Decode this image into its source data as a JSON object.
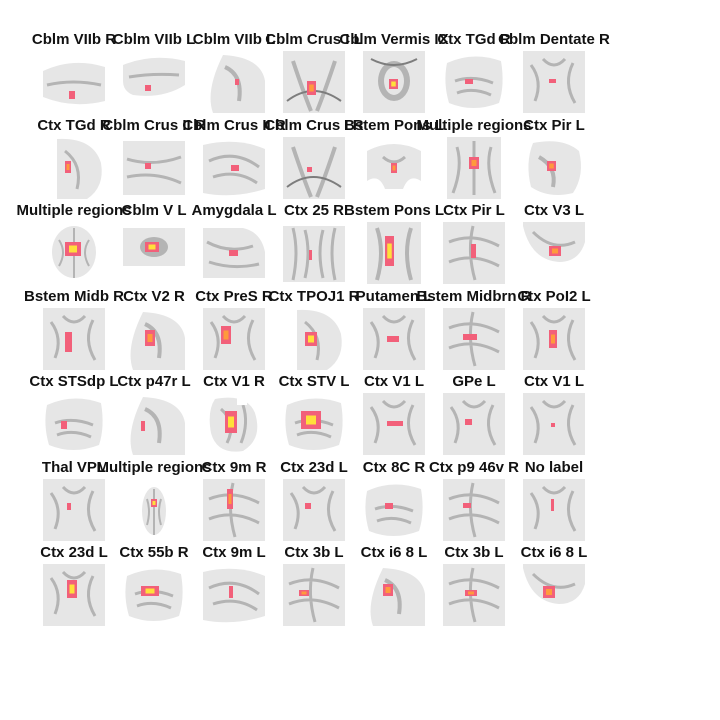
{
  "colors": {
    "background": "#ffffff",
    "tissue_light": "#e6e6e6",
    "tissue_mid": "#b4b4b4",
    "tissue_dark": "#7d7d7d",
    "activation_low": "#f2607a",
    "activation_mid": "#ff9a3c",
    "activation_high": "#ffe03a"
  },
  "panels": [
    {
      "label": "Cblm VIIb R",
      "icon": "brain-slice-icon",
      "activation": 0.2
    },
    {
      "label": "Cblm VIIb L",
      "icon": "brain-slice-icon",
      "activation": 0.2
    },
    {
      "label": "Cblm VIIb L",
      "icon": "brain-slice-icon",
      "activation": 0.15
    },
    {
      "label": "Cblm Crus I L",
      "icon": "brain-slice-icon",
      "activation": 0.6
    },
    {
      "label": "Cblm Vermis IX",
      "icon": "brain-slice-icon",
      "activation": 0.75
    },
    {
      "label": "Ctx TGd R",
      "icon": "brain-slice-icon",
      "activation": 0.15
    },
    {
      "label": "Cblm Dentate R",
      "icon": "brain-slice-icon",
      "activation": 0.15
    },
    {
      "label": "Ctx TGd R",
      "icon": "brain-slice-icon",
      "activation": 0.55
    },
    {
      "label": "Cblm Crus II R",
      "icon": "brain-slice-icon",
      "activation": 0.2
    },
    {
      "label": "Cblm Crus II R",
      "icon": "brain-slice-icon",
      "activation": 0.2
    },
    {
      "label": "Cblm Crus I R",
      "icon": "brain-slice-icon",
      "activation": 0.15
    },
    {
      "label": "Bstem Pons L",
      "icon": "brain-slice-icon",
      "activation": 0.5
    },
    {
      "label": "Multiple regions",
      "icon": "brain-slice-icon",
      "activation": 0.6
    },
    {
      "label": "Ctx Pir L",
      "icon": "brain-slice-icon",
      "activation": 0.65
    },
    {
      "label": "Multiple regions",
      "icon": "brain-slice-icon",
      "activation": 0.7
    },
    {
      "label": "Cblm V L",
      "icon": "brain-slice-icon",
      "activation": 0.7
    },
    {
      "label": "Amygdala L",
      "icon": "brain-slice-icon",
      "activation": 0.2
    },
    {
      "label": "Ctx 25 R",
      "icon": "brain-slice-icon",
      "activation": 0.15
    },
    {
      "label": "Bstem Pons L",
      "icon": "brain-slice-icon",
      "activation": 0.7
    },
    {
      "label": "Ctx Pir L",
      "icon": "brain-slice-icon",
      "activation": 0.4
    },
    {
      "label": "Ctx V3 L",
      "icon": "brain-slice-icon",
      "activation": 0.65
    },
    {
      "label": "Bstem Midb R",
      "icon": "brain-slice-icon",
      "activation": 0.3
    },
    {
      "label": "Ctx V2 R",
      "icon": "brain-slice-icon",
      "activation": 0.5
    },
    {
      "label": "Ctx PreS R",
      "icon": "brain-slice-icon",
      "activation": 0.55
    },
    {
      "label": "Ctx TPOJ1 R",
      "icon": "brain-slice-icon",
      "activation": 0.75
    },
    {
      "label": "Putamen L",
      "icon": "brain-slice-icon",
      "activation": 0.35
    },
    {
      "label": "Bstem Midbrn R",
      "icon": "brain-slice-icon",
      "activation": 0.2
    },
    {
      "label": "Ctx PoI2 L",
      "icon": "brain-slice-icon",
      "activation": 0.55
    },
    {
      "label": "Ctx STSdp L",
      "icon": "brain-slice-icon",
      "activation": 0.2
    },
    {
      "label": "Ctx p47r L",
      "icon": "brain-slice-icon",
      "activation": 0.2
    },
    {
      "label": "Ctx V1 R",
      "icon": "brain-slice-icon",
      "activation": 0.8
    },
    {
      "label": "Ctx STV L",
      "icon": "brain-slice-icon",
      "activation": 0.85
    },
    {
      "label": "Ctx V1 L",
      "icon": "brain-slice-icon",
      "activation": 0.3
    },
    {
      "label": "GPe L",
      "icon": "brain-slice-icon",
      "activation": 0.15
    },
    {
      "label": "Ctx V1 L",
      "icon": "brain-slice-icon",
      "activation": 0.2
    },
    {
      "label": "Thal VPL",
      "icon": "brain-slice-icon",
      "activation": 0.15
    },
    {
      "label": "Multiple regions",
      "icon": "brain-slice-icon",
      "activation": 0.7
    },
    {
      "label": "Ctx 9m R",
      "icon": "brain-slice-icon",
      "activation": 0.5
    },
    {
      "label": "Ctx 23d L",
      "icon": "brain-slice-icon",
      "activation": 0.2
    },
    {
      "label": "Ctx 8C R",
      "icon": "brain-slice-icon",
      "activation": 0.4
    },
    {
      "label": "Ctx p9 46v R",
      "icon": "brain-slice-icon",
      "activation": 0.2
    },
    {
      "label": "No label",
      "icon": "brain-slice-icon",
      "activation": 0.15
    },
    {
      "label": "Ctx 23d L",
      "icon": "brain-slice-icon",
      "activation": 0.7
    },
    {
      "label": "Ctx 55b R",
      "icon": "brain-slice-icon",
      "activation": 0.7
    },
    {
      "label": "Ctx 9m L",
      "icon": "brain-slice-icon",
      "activation": 0.2
    },
    {
      "label": "Ctx 3b L",
      "icon": "brain-slice-icon",
      "activation": 0.55
    },
    {
      "label": "Ctx i6 8 L",
      "icon": "brain-slice-icon",
      "activation": 0.6
    },
    {
      "label": "Ctx 3b L",
      "icon": "brain-slice-icon",
      "activation": 0.55
    },
    {
      "label": "Ctx i6 8 L",
      "icon": "brain-slice-icon",
      "activation": 0.6
    }
  ]
}
